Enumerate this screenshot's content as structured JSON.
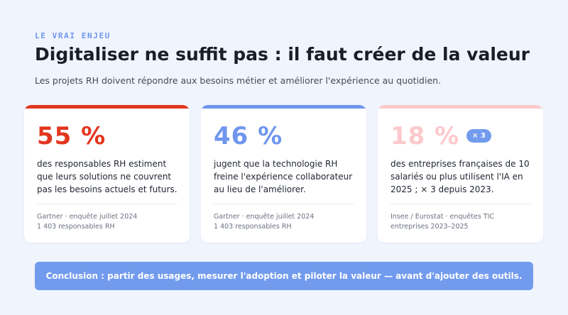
{
  "header": {
    "eyebrow": "LE VRAI ENJEU",
    "title": "Digitaliser ne suffit pas : il faut créer de la valeur",
    "subtitle": "Les projets RH doivent répondre aux besoins métier et améliorer l'expérience au quotidien."
  },
  "cards": [
    {
      "stat": "55 %",
      "description": "des responsables RH estiment que leurs solutions ne couvrent pas les besoins actuels et futurs.",
      "source_line1": "Gartner · enquête juillet 2024",
      "source_line2": "1 403 responsables RH",
      "accent": "#e2361e"
    },
    {
      "stat": "46 %",
      "description": "jugent que la technologie RH freine l'expérience collaborateur au lieu de l'améliorer.",
      "source_line1": "Gartner · enquête juillet 2024",
      "source_line2": "1 403 responsables RH",
      "accent": "#6f96ee"
    },
    {
      "stat": "18 %",
      "badge": "× 3",
      "description": "des entreprises françaises de 10 salariés ou plus utilisent l'IA en 2025 ; × 3 depuis 2023.",
      "source_line1": "Insee / Eurostat · enquêtes TIC",
      "source_line2": "entreprises 2023–2025",
      "accent": "#fcc9cc",
      "badge_color": "#729bee"
    }
  ],
  "conclusion": "Conclusion : partir des usages, mesurer l'adoption et piloter la valeur — avant d'ajouter des outils."
}
